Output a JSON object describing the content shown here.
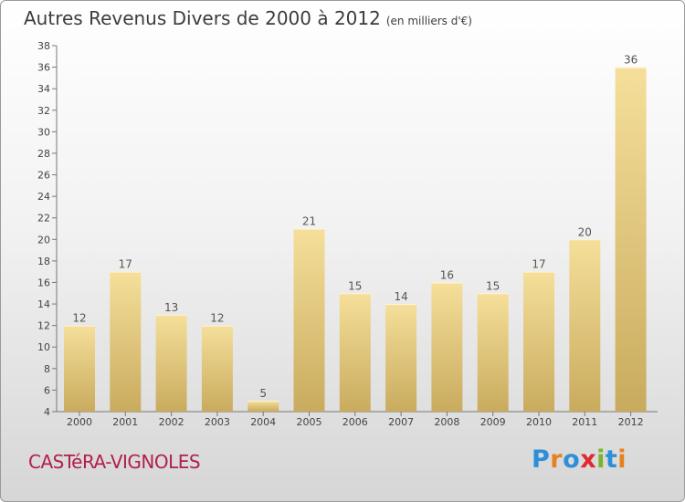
{
  "chart_data": {
    "type": "bar",
    "title": "Autres Revenus Divers de 2000 à 2012",
    "subtitle": "(en milliers d'€)",
    "categories": [
      "2000",
      "2001",
      "2002",
      "2003",
      "2004",
      "2005",
      "2006",
      "2007",
      "2008",
      "2009",
      "2010",
      "2011",
      "2012"
    ],
    "values": [
      12,
      17,
      13,
      12,
      5,
      21,
      15,
      14,
      16,
      15,
      17,
      20,
      36
    ],
    "ylim": [
      4,
      38
    ],
    "yticks": [
      4,
      6,
      8,
      10,
      12,
      14,
      16,
      18,
      20,
      22,
      24,
      26,
      28,
      30,
      32,
      34,
      36,
      38
    ],
    "grid": false,
    "xlabel": "",
    "ylabel": "",
    "bar_color_top": "#f5df9a",
    "bar_color_bottom": "#c9ab5e"
  },
  "footer": {
    "place": "CASTéRA-VIGNOLES",
    "place_color": "#b0204a"
  },
  "logo": {
    "letters": [
      {
        "ch": "P",
        "color": "#2d8fd8"
      },
      {
        "ch": "r",
        "color": "#e6821e"
      },
      {
        "ch": "o",
        "color": "#2d8fd8"
      },
      {
        "ch": "x",
        "color": "#e0282f"
      },
      {
        "ch": "i",
        "color": "#79b52a"
      },
      {
        "ch": "t",
        "color": "#2d8fd8"
      },
      {
        "ch": "i",
        "color": "#e6821e"
      }
    ]
  }
}
